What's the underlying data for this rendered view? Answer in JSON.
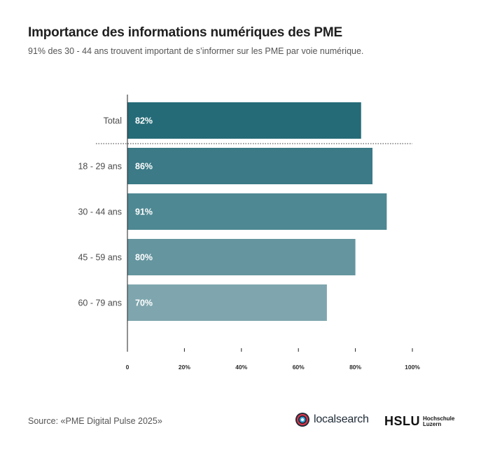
{
  "title": "Importance des informations numériques des PME",
  "subtitle": "91% des 30 - 44 ans trouvent important de s’informer sur les PME par voie numérique.",
  "source": "Source: «PME Digital Pulse 2025»",
  "logos": {
    "localsearch": "localsearch",
    "hslu_mark": "HSLU",
    "hslu_line1": "Hochschule",
    "hslu_line2": "Luzern"
  },
  "chart_data": {
    "type": "bar",
    "orientation": "horizontal",
    "categories": [
      "Total",
      "18 - 29 ans",
      "30 - 44 ans",
      "45 - 59 ans",
      "60 - 79 ans"
    ],
    "values": [
      82,
      86,
      91,
      80,
      70
    ],
    "value_labels": [
      "82%",
      "86%",
      "91%",
      "80%",
      "70%"
    ],
    "colors": [
      "#256b77",
      "#3b7a86",
      "#4e8893",
      "#65959f",
      "#7fa6ae"
    ],
    "xlim": [
      0,
      100
    ],
    "x_ticks": [
      0,
      20,
      40,
      60,
      80,
      100
    ],
    "x_tick_labels": [
      "0",
      "20%",
      "40%",
      "60%",
      "80%",
      "100%"
    ],
    "separator_after": "Total",
    "grid": false
  }
}
